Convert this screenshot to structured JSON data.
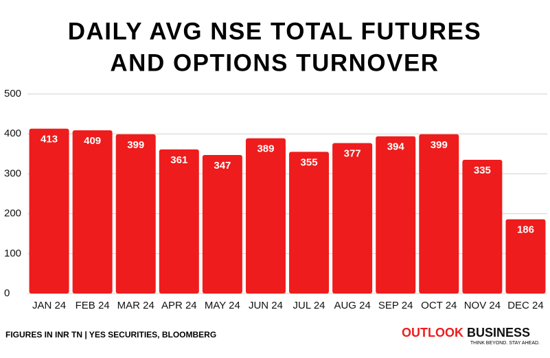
{
  "chart_data": {
    "type": "bar",
    "title": [
      "DAILY AVG NSE TOTAL FUTURES",
      "AND OPTIONS TURNOVER"
    ],
    "categories": [
      "JAN 24",
      "FEB 24",
      "MAR 24",
      "APR 24",
      "MAY 24",
      "JUN 24",
      "JUL 24",
      "AUG 24",
      "SEP 24",
      "OCT 24",
      "NOV 24",
      "DEC 24"
    ],
    "values": [
      413,
      409,
      399,
      361,
      347,
      389,
      355,
      377,
      394,
      399,
      335,
      186
    ],
    "color": "#ee1c1c",
    "ylim": [
      0,
      500
    ],
    "yticks": [
      0,
      100,
      200,
      300,
      400,
      500
    ],
    "grid": true,
    "source": "FIGURES IN INR TN | YES SECURITIES, BLOOMBERG"
  },
  "branding": {
    "name_part1": "OUTLOOK",
    "name_part2": "BUSINESS",
    "tagline": "THINK BEYOND. STAY AHEAD."
  }
}
